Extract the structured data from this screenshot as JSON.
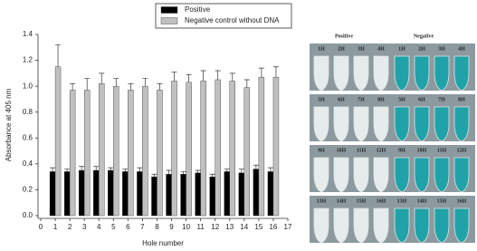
{
  "chart_data": {
    "type": "bar",
    "x_label": "Hole number",
    "y_label": "Absorbance at 405 nm",
    "x": [
      1,
      2,
      3,
      4,
      5,
      6,
      7,
      8,
      9,
      10,
      11,
      12,
      13,
      14,
      15,
      16
    ],
    "series": [
      {
        "name": "Positive",
        "color": "#000000",
        "values": [
          0.34,
          0.34,
          0.35,
          0.35,
          0.35,
          0.34,
          0.34,
          0.3,
          0.32,
          0.32,
          0.33,
          0.3,
          0.34,
          0.33,
          0.36,
          0.34
        ],
        "errors": [
          0.03,
          0.02,
          0.03,
          0.03,
          0.02,
          0.02,
          0.03,
          0.02,
          0.03,
          0.02,
          0.02,
          0.02,
          0.02,
          0.03,
          0.03,
          0.03
        ]
      },
      {
        "name": "Negative control without DNA",
        "color": "#c0c0c0",
        "values": [
          1.15,
          0.97,
          0.97,
          1.02,
          1.0,
          0.97,
          1.0,
          0.97,
          1.04,
          1.03,
          1.04,
          1.05,
          1.04,
          0.99,
          1.07,
          1.07
        ],
        "errors": [
          0.17,
          0.05,
          0.09,
          0.08,
          0.06,
          0.05,
          0.06,
          0.05,
          0.07,
          0.06,
          0.08,
          0.07,
          0.06,
          0.06,
          0.07,
          0.08
        ]
      }
    ],
    "xlim": [
      0,
      17
    ],
    "xticks": [
      0,
      1,
      2,
      3,
      4,
      5,
      6,
      7,
      8,
      9,
      10,
      11,
      12,
      13,
      14,
      15,
      16,
      17
    ],
    "ylim": [
      0,
      1.4
    ],
    "yticks": [
      {
        "value": 0,
        "label": "0.0"
      },
      {
        "value": 0.2,
        "label": "0.2"
      },
      {
        "value": 0.4,
        "label": "0.4"
      },
      {
        "value": 0.6,
        "label": "0.6"
      },
      {
        "value": 0.8,
        "label": "0.8"
      },
      {
        "value": 1.0,
        "label": "1.0"
      },
      {
        "value": 1.2,
        "label": "1.2"
      },
      {
        "value": 1.4,
        "label": "1.4"
      }
    ],
    "grid": false
  },
  "photo": {
    "positive": "Positive",
    "negative": "Negative",
    "positive_rows": [
      [
        "1H",
        "2H",
        "3H",
        "4H"
      ],
      [
        "5H",
        "6H",
        "7H",
        "8H"
      ],
      [
        "9H",
        "10H",
        "11H",
        "12H"
      ],
      [
        "13H",
        "14H",
        "15H",
        "16H"
      ]
    ],
    "negative_rows": [
      [
        "1H",
        "2H",
        "3H",
        "4H"
      ],
      [
        "5H",
        "6H",
        "7H",
        "8H"
      ],
      [
        "9H",
        "10H",
        "11H",
        "12H"
      ],
      [
        "13H",
        "14H",
        "15H",
        "16H"
      ]
    ]
  }
}
